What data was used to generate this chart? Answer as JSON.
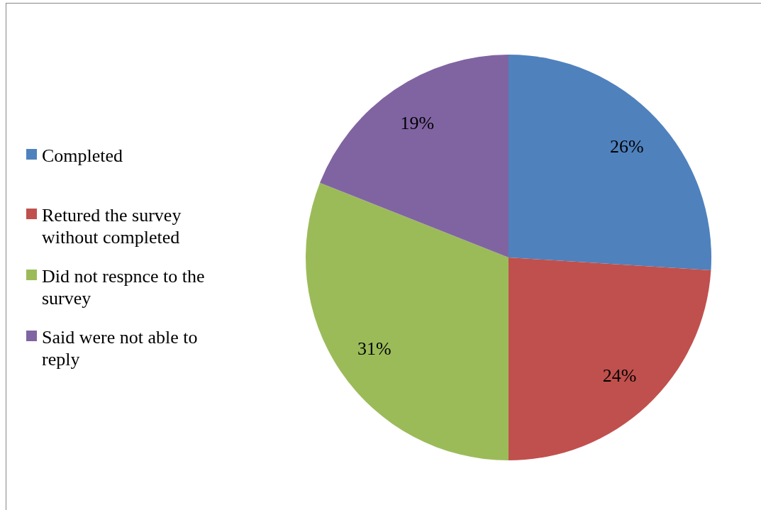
{
  "chart_data": {
    "type": "pie",
    "categories": [
      "Completed",
      "Retured the survey without completed",
      "Did not respnce to the survey",
      "Said were not able to reply"
    ],
    "values": [
      26,
      24,
      31,
      19
    ],
    "colors": [
      "#4f81bd",
      "#c0504d",
      "#9bbb59",
      "#8064a2"
    ],
    "value_labels": [
      "26%",
      "24%",
      "31%",
      "19%"
    ],
    "legend": "left"
  }
}
